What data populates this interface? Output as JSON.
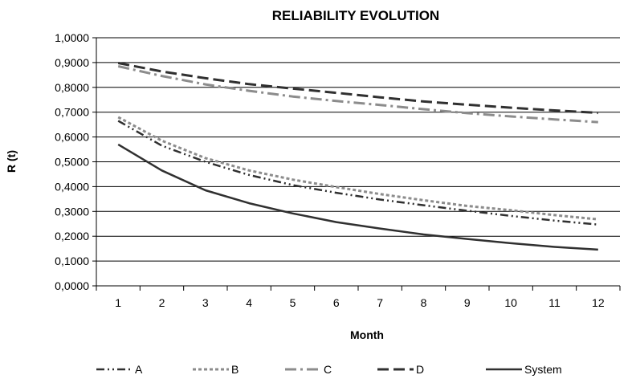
{
  "chart_data": {
    "type": "line",
    "title": "RELIABILITY EVOLUTION",
    "xlabel": "Month",
    "ylabel": "R (t)",
    "x": [
      1,
      2,
      3,
      4,
      5,
      6,
      7,
      8,
      9,
      10,
      11,
      12
    ],
    "x_tick_labels": [
      "1",
      "2",
      "3",
      "4",
      "5",
      "6",
      "7",
      "8",
      "9",
      "10",
      "11",
      "12"
    ],
    "ylim": [
      0,
      1
    ],
    "y_tick_labels": [
      "0,0000",
      "0,1000",
      "0,2000",
      "0,3000",
      "0,4000",
      "0,5000",
      "0,6000",
      "0,7000",
      "0,8000",
      "0,9000",
      "1,0000"
    ],
    "grid": "horizontal",
    "legend_position": "bottom",
    "series": [
      {
        "name": "A",
        "color": "#303030",
        "style": "dash-dot-dot",
        "values": [
          0.665,
          0.565,
          0.5,
          0.447,
          0.406,
          0.375,
          0.348,
          0.325,
          0.303,
          0.282,
          0.263,
          0.247
        ]
      },
      {
        "name": "B",
        "color": "#8c8c8c",
        "style": "short-dash",
        "values": [
          0.68,
          0.585,
          0.515,
          0.465,
          0.428,
          0.398,
          0.37,
          0.345,
          0.322,
          0.305,
          0.285,
          0.268
        ]
      },
      {
        "name": "C",
        "color": "#8c8c8c",
        "style": "long-dash-dot",
        "values": [
          0.885,
          0.846,
          0.812,
          0.786,
          0.763,
          0.745,
          0.729,
          0.712,
          0.696,
          0.683,
          0.671,
          0.66
        ]
      },
      {
        "name": "D",
        "color": "#303030",
        "style": "long-dash",
        "values": [
          0.898,
          0.864,
          0.837,
          0.813,
          0.795,
          0.778,
          0.76,
          0.743,
          0.73,
          0.718,
          0.707,
          0.697
        ]
      },
      {
        "name": "System",
        "color": "#303030",
        "style": "solid",
        "values": [
          0.57,
          0.465,
          0.385,
          0.333,
          0.292,
          0.257,
          0.231,
          0.207,
          0.189,
          0.172,
          0.157,
          0.146
        ]
      }
    ]
  }
}
